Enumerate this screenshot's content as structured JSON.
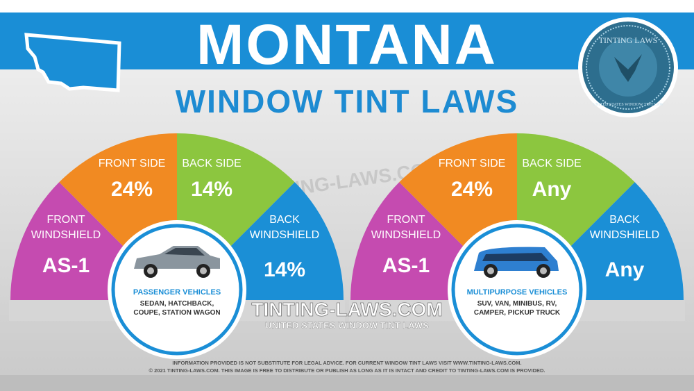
{
  "header": {
    "title": "MONTANA",
    "subtitle": "WINDOW TINT LAWS"
  },
  "seal": {
    "top_text": "TINTING LAWS",
    "bottom_text": "UNITED STATES WINDOW TINT LAW"
  },
  "colors": {
    "blue": "#1a8ed6",
    "purple": "#c54bb0",
    "orange": "#f18a22",
    "green": "#8cc63f",
    "segment_blue": "#1b8fd6",
    "title_blue": "#1d8bd2"
  },
  "gauges": [
    {
      "vehicle_title": "PASSENGER VEHICLES",
      "vehicle_lines": [
        "SEDAN, HATCHBACK,",
        "COUPE, STATION WAGON"
      ],
      "car_icon": "sedan-icon",
      "segments": [
        {
          "label": [
            "FRONT",
            "WINDSHIELD"
          ],
          "value": "AS-1"
        },
        {
          "label": [
            "FRONT SIDE"
          ],
          "value": "24%"
        },
        {
          "label": [
            "BACK SIDE"
          ],
          "value": "14%"
        },
        {
          "label": [
            "BACK",
            "WINDSHIELD"
          ],
          "value": "14%"
        }
      ]
    },
    {
      "vehicle_title": "MULTIPURPOSE VEHICLES",
      "vehicle_lines": [
        "SUV, VAN, MINIBUS, RV,",
        "CAMPER, PICKUP TRUCK"
      ],
      "car_icon": "suv-icon",
      "segments": [
        {
          "label": [
            "FRONT",
            "WINDSHIELD"
          ],
          "value": "AS-1"
        },
        {
          "label": [
            "FRONT SIDE"
          ],
          "value": "24%"
        },
        {
          "label": [
            "BACK SIDE"
          ],
          "value": "Any"
        },
        {
          "label": [
            "BACK",
            "WINDSHIELD"
          ],
          "value": "Any"
        }
      ]
    }
  ],
  "center": {
    "site": "TINTING-LAWS.COM",
    "tagline": "UNITED STATES WINDOW TINT LAWS",
    "watermark": "TINTING-LAWS.COM"
  },
  "footer": {
    "line1": "INFORMATION PROVIDED IS NOT SUBSTITUTE FOR LEGAL ADVICE. FOR CURRENT WINDOW TINT LAWS VISIT WWW.TINTING-LAWS.COM.",
    "line2": "© 2021 TINTING-LAWS.COM. THIS IMAGE IS FREE TO DISTRIBUTE OR PUBLISH AS LONG AS IT IS INTACT AND CREDIT TO TINTING-LAWS.COM IS PROVIDED."
  }
}
